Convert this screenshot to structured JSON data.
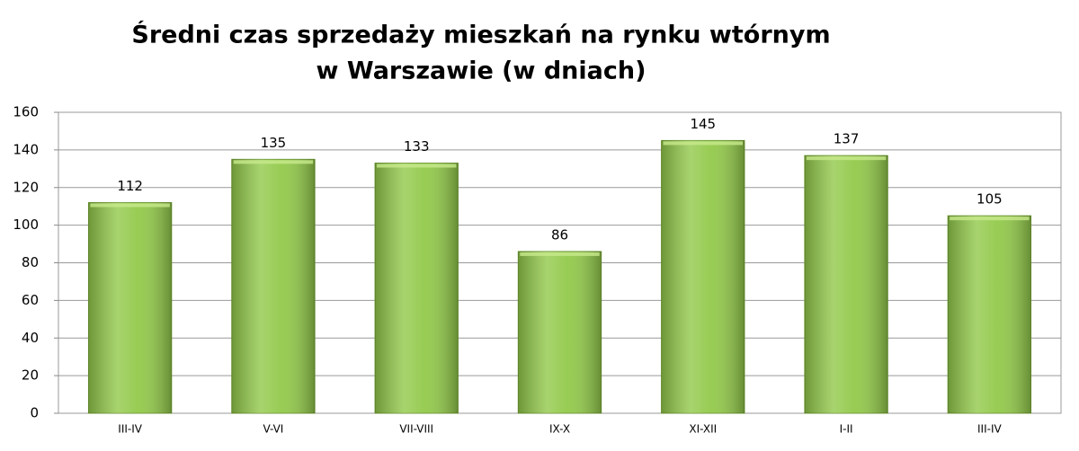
{
  "chart_data": {
    "type": "bar",
    "title": [
      "Średni czas sprzedaży mieszkań na rynku wtórnym",
      "w Warszawie (w dniach)"
    ],
    "categories": [
      "III-IV",
      "V-VI",
      "VII-VIII",
      "IX-X",
      "XI-XII",
      "I-II",
      "III-IV"
    ],
    "values": [
      112,
      135,
      133,
      86,
      145,
      137,
      105
    ],
    "color": "#92c94a",
    "ylim": [
      0,
      160
    ],
    "yticks": [
      0,
      20,
      40,
      60,
      80,
      100,
      120,
      140,
      160
    ],
    "grid": true
  }
}
